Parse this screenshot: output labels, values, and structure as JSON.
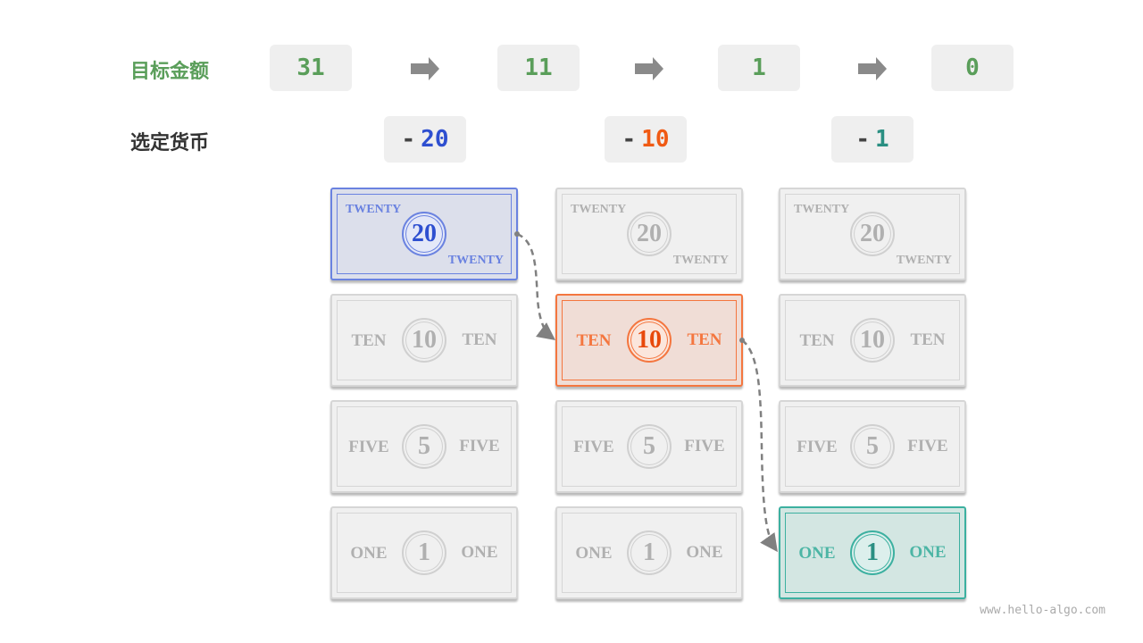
{
  "labels": {
    "target": "目标金额",
    "selected": "选定货币"
  },
  "targets": [
    "31",
    "11",
    "1",
    "0"
  ],
  "selected": [
    {
      "minus": "-",
      "value": "20",
      "color": "#2e4fd0"
    },
    {
      "minus": "-",
      "value": "10",
      "color": "#f05a14"
    },
    {
      "minus": "-",
      "value": "1",
      "color": "#2a8f82"
    }
  ],
  "notes": [
    {
      "value": "20",
      "word": "TWENTY"
    },
    {
      "value": "10",
      "word": "TEN"
    },
    {
      "value": "5",
      "word": "FIVE"
    },
    {
      "value": "1",
      "word": "ONE"
    }
  ],
  "highlight": [
    0,
    1,
    3
  ],
  "colors": {
    "target": "#5a9e5a",
    "blue": "#4a64d8",
    "orange": "#f4763f",
    "teal": "#3cb0a0",
    "arrow": "#8a8a8a"
  },
  "watermark": "www.hello-algo.com"
}
